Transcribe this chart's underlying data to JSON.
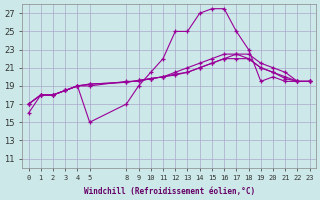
{
  "background_color": "#cce8e8",
  "grid_color": "#aaaacc",
  "line_color": "#990099",
  "marker_color": "#990099",
  "xlabel": "Windchill (Refroidissement éolien,°C)",
  "ylim": [
    10,
    28
  ],
  "yticks": [
    11,
    13,
    15,
    17,
    19,
    21,
    23,
    25,
    27
  ],
  "xtick_positions": [
    0,
    1,
    2,
    3,
    4,
    5,
    8,
    9,
    10,
    11,
    12,
    13,
    14,
    15,
    16,
    17,
    18,
    19,
    20,
    21,
    22,
    23
  ],
  "xtick_labels": [
    "0",
    "1",
    "2",
    "3",
    "4",
    "5",
    "8",
    "9",
    "10",
    "11",
    "12",
    "13",
    "14",
    "15",
    "16",
    "17",
    "18",
    "19",
    "20",
    "21",
    "22",
    "23"
  ],
  "series": [
    {
      "x": [
        0,
        1,
        2,
        3,
        4,
        5,
        8,
        9,
        10,
        11,
        12,
        13,
        14,
        15,
        16,
        17,
        18,
        19,
        20,
        21,
        22,
        23
      ],
      "y": [
        16,
        18,
        18,
        18.5,
        19,
        15,
        17,
        19,
        20.5,
        22,
        25,
        25,
        27,
        27.5,
        27.5,
        25,
        23,
        19.5,
        20,
        19.5,
        19.5,
        19.5
      ]
    },
    {
      "x": [
        0,
        1,
        2,
        3,
        4,
        5,
        8,
        9,
        10,
        11,
        12,
        13,
        14,
        15,
        16,
        17,
        18,
        19,
        20,
        21,
        22,
        23
      ],
      "y": [
        17,
        18,
        18,
        18.5,
        19,
        19,
        19.5,
        19.5,
        19.8,
        20,
        20.5,
        21,
        21.5,
        22,
        22.5,
        22.5,
        22,
        21,
        20.5,
        20,
        19.5,
        19.5
      ]
    },
    {
      "x": [
        0,
        1,
        2,
        3,
        4,
        5,
        8,
        9,
        10,
        11,
        12,
        13,
        14,
        15,
        16,
        17,
        18,
        19,
        20,
        21,
        22,
        23
      ],
      "y": [
        17,
        18,
        18,
        18.5,
        19,
        19.2,
        19.4,
        19.6,
        19.8,
        20,
        20.3,
        20.5,
        21,
        21.5,
        22,
        22.5,
        22.5,
        21.5,
        21,
        20.5,
        19.5,
        19.5
      ]
    },
    {
      "x": [
        0,
        1,
        2,
        3,
        4,
        5,
        8,
        9,
        10,
        11,
        12,
        13,
        14,
        15,
        16,
        17,
        18,
        19,
        20,
        21,
        22,
        23
      ],
      "y": [
        17,
        18,
        18,
        18.5,
        19,
        19.2,
        19.4,
        19.6,
        19.8,
        20,
        20.2,
        20.5,
        21,
        21.5,
        22,
        22,
        22,
        21,
        20.5,
        19.8,
        19.5,
        19.5
      ]
    }
  ]
}
